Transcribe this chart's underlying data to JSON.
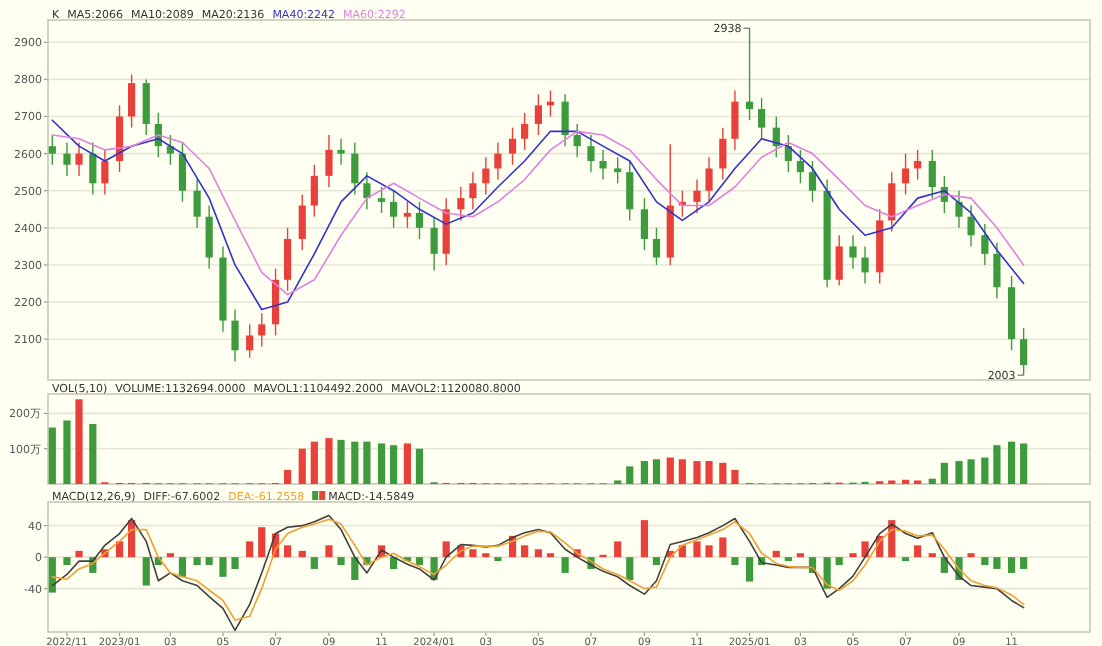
{
  "chart_data": [
    {
      "type": "candlestick",
      "x": [
        "2022-10-15",
        "2022-11-01",
        "2022-11-15",
        "2022-12-01",
        "2022-12-15",
        "2023-01-01",
        "2023-01-15",
        "2023-02-01",
        "2023-02-15",
        "2023-03-01",
        "2023-03-15",
        "2023-04-01",
        "2023-04-15",
        "2023-05-01",
        "2023-05-15",
        "2023-06-01",
        "2023-06-15",
        "2023-07-01",
        "2023-07-15",
        "2023-08-01",
        "2023-08-15",
        "2023-09-01",
        "2023-09-15",
        "2023-10-01",
        "2023-10-15",
        "2023-11-01",
        "2023-11-15",
        "2023-12-01",
        "2023-12-15",
        "2024-01-01",
        "2024-01-15",
        "2024-02-01",
        "2024-02-15",
        "2024-03-01",
        "2024-03-15",
        "2024-04-01",
        "2024-04-15",
        "2024-05-01",
        "2024-05-15",
        "2024-06-01",
        "2024-06-15",
        "2024-07-01",
        "2024-07-15",
        "2024-08-01",
        "2024-08-15",
        "2024-09-01",
        "2024-09-15",
        "2024-10-01",
        "2024-10-15",
        "2024-11-01",
        "2024-11-15",
        "2024-12-01",
        "2024-12-15",
        "2025-01-01",
        "2025-01-15",
        "2025-02-01",
        "2025-02-15",
        "2025-03-01",
        "2025-03-15",
        "2025-04-01",
        "2025-04-15",
        "2025-05-01",
        "2025-05-15",
        "2025-06-01",
        "2025-06-15",
        "2025-07-01",
        "2025-07-15",
        "2025-08-01",
        "2025-08-15",
        "2025-09-01",
        "2025-09-15",
        "2025-10-01",
        "2025-10-15",
        "2025-11-01",
        "2025-11-15"
      ],
      "ohlc": [
        [
          2620,
          2650,
          2570,
          2600
        ],
        [
          2600,
          2630,
          2540,
          2570
        ],
        [
          2570,
          2630,
          2540,
          2600
        ],
        [
          2600,
          2630,
          2490,
          2520
        ],
        [
          2520,
          2610,
          2490,
          2580
        ],
        [
          2580,
          2730,
          2550,
          2700
        ],
        [
          2700,
          2813,
          2670,
          2790
        ],
        [
          2790,
          2800,
          2650,
          2680
        ],
        [
          2680,
          2710,
          2590,
          2620
        ],
        [
          2620,
          2650,
          2570,
          2600
        ],
        [
          2600,
          2630,
          2470,
          2500
        ],
        [
          2500,
          2530,
          2400,
          2430
        ],
        [
          2430,
          2460,
          2290,
          2320
        ],
        [
          2320,
          2350,
          2120,
          2150
        ],
        [
          2150,
          2180,
          2040,
          2070
        ],
        [
          2070,
          2140,
          2050,
          2110
        ],
        [
          2110,
          2170,
          2080,
          2140
        ],
        [
          2140,
          2290,
          2110,
          2260
        ],
        [
          2260,
          2400,
          2230,
          2370
        ],
        [
          2370,
          2490,
          2340,
          2460
        ],
        [
          2460,
          2570,
          2430,
          2540
        ],
        [
          2540,
          2650,
          2510,
          2610
        ],
        [
          2610,
          2640,
          2570,
          2600
        ],
        [
          2600,
          2630,
          2490,
          2520
        ],
        [
          2520,
          2550,
          2450,
          2480
        ],
        [
          2480,
          2510,
          2440,
          2470
        ],
        [
          2470,
          2500,
          2400,
          2430
        ],
        [
          2430,
          2470,
          2400,
          2440
        ],
        [
          2440,
          2470,
          2370,
          2400
        ],
        [
          2400,
          2430,
          2285,
          2330
        ],
        [
          2330,
          2480,
          2300,
          2450
        ],
        [
          2450,
          2510,
          2420,
          2480
        ],
        [
          2480,
          2550,
          2450,
          2520
        ],
        [
          2520,
          2590,
          2490,
          2560
        ],
        [
          2560,
          2630,
          2530,
          2600
        ],
        [
          2600,
          2670,
          2570,
          2640
        ],
        [
          2640,
          2710,
          2610,
          2680
        ],
        [
          2680,
          2760,
          2650,
          2730
        ],
        [
          2730,
          2770,
          2700,
          2740
        ],
        [
          2740,
          2760,
          2620,
          2650
        ],
        [
          2650,
          2680,
          2590,
          2620
        ],
        [
          2620,
          2650,
          2550,
          2580
        ],
        [
          2580,
          2610,
          2530,
          2560
        ],
        [
          2560,
          2590,
          2520,
          2550
        ],
        [
          2550,
          2580,
          2420,
          2450
        ],
        [
          2450,
          2480,
          2340,
          2370
        ],
        [
          2370,
          2400,
          2300,
          2320
        ],
        [
          2320,
          2625,
          2300,
          2460
        ],
        [
          2460,
          2500,
          2430,
          2470
        ],
        [
          2470,
          2530,
          2440,
          2500
        ],
        [
          2500,
          2590,
          2470,
          2560
        ],
        [
          2560,
          2670,
          2530,
          2640
        ],
        [
          2640,
          2770,
          2610,
          2740
        ],
        [
          2740,
          2938,
          2690,
          2720
        ],
        [
          2720,
          2750,
          2640,
          2670
        ],
        [
          2670,
          2700,
          2590,
          2620
        ],
        [
          2620,
          2650,
          2550,
          2580
        ],
        [
          2580,
          2610,
          2520,
          2550
        ],
        [
          2550,
          2580,
          2470,
          2500
        ],
        [
          2500,
          2530,
          2240,
          2260
        ],
        [
          2260,
          2380,
          2245,
          2350
        ],
        [
          2350,
          2380,
          2290,
          2320
        ],
        [
          2320,
          2350,
          2250,
          2280
        ],
        [
          2280,
          2450,
          2250,
          2420
        ],
        [
          2420,
          2550,
          2390,
          2520
        ],
        [
          2520,
          2600,
          2490,
          2560
        ],
        [
          2560,
          2610,
          2530,
          2580
        ],
        [
          2580,
          2610,
          2480,
          2510
        ],
        [
          2510,
          2540,
          2440,
          2470
        ],
        [
          2470,
          2500,
          2400,
          2430
        ],
        [
          2430,
          2460,
          2350,
          2380
        ],
        [
          2380,
          2410,
          2300,
          2330
        ],
        [
          2330,
          2360,
          2210,
          2240
        ],
        [
          2240,
          2270,
          2070,
          2100
        ],
        [
          2100,
          2130,
          2003,
          2030
        ]
      ],
      "colors": [
        "#3d9b3d",
        "#3d9b3d",
        "#e8413c",
        "#3d9b3d",
        "#e8413c",
        "#e8413c",
        "#e8413c",
        "#3d9b3d",
        "#3d9b3d",
        "#3d9b3d",
        "#3d9b3d",
        "#3d9b3d",
        "#3d9b3d",
        "#3d9b3d",
        "#3d9b3d",
        "#e8413c",
        "#e8413c",
        "#e8413c",
        "#e8413c",
        "#e8413c",
        "#e8413c",
        "#e8413c",
        "#3d9b3d",
        "#3d9b3d",
        "#3d9b3d",
        "#3d9b3d",
        "#3d9b3d",
        "#e8413c",
        "#3d9b3d",
        "#3d9b3d",
        "#e8413c",
        "#e8413c",
        "#e8413c",
        "#e8413c",
        "#e8413c",
        "#e8413c",
        "#e8413c",
        "#e8413c",
        "#e8413c",
        "#3d9b3d",
        "#3d9b3d",
        "#3d9b3d",
        "#3d9b3d",
        "#3d9b3d",
        "#3d9b3d",
        "#3d9b3d",
        "#3d9b3d",
        "#e8413c",
        "#e8413c",
        "#e8413c",
        "#e8413c",
        "#e8413c",
        "#e8413c",
        "#3d9b3d",
        "#3d9b3d",
        "#3d9b3d",
        "#3d9b3d",
        "#3d9b3d",
        "#3d9b3d",
        "#3d9b3d",
        "#e8413c",
        "#3d9b3d",
        "#3d9b3d",
        "#e8413c",
        "#e8413c",
        "#e8413c",
        "#e8413c",
        "#3d9b3d",
        "#3d9b3d",
        "#3d9b3d",
        "#3d9b3d",
        "#3d9b3d",
        "#3d9b3d",
        "#3d9b3d",
        "#3d9b3d"
      ],
      "series": [
        {
          "name": "MA40:2242",
          "type": "line",
          "color": "#3333cc",
          "x": [
            "2022-10-15",
            "2022-11-15",
            "2022-12-15",
            "2023-01-15",
            "2023-02-15",
            "2023-03-15",
            "2023-04-15",
            "2023-05-15",
            "2023-06-15",
            "2023-07-15",
            "2023-08-15",
            "2023-09-15",
            "2023-10-15",
            "2023-11-15",
            "2023-12-15",
            "2024-01-15",
            "2024-02-15",
            "2024-03-15",
            "2024-04-15",
            "2024-05-15",
            "2024-06-15",
            "2024-07-15",
            "2024-08-15",
            "2024-09-15",
            "2024-10-15",
            "2024-11-15",
            "2024-12-15",
            "2025-01-15",
            "2025-02-15",
            "2025-03-15",
            "2025-04-15",
            "2025-05-15",
            "2025-06-15",
            "2025-07-15",
            "2025-08-15",
            "2025-09-15",
            "2025-10-15",
            "2025-11-15"
          ],
          "values": [
            2690,
            2620,
            2580,
            2620,
            2640,
            2600,
            2480,
            2300,
            2180,
            2200,
            2330,
            2470,
            2540,
            2500,
            2450,
            2410,
            2440,
            2510,
            2580,
            2660,
            2660,
            2620,
            2580,
            2470,
            2420,
            2470,
            2560,
            2640,
            2620,
            2560,
            2450,
            2380,
            2400,
            2480,
            2500,
            2440,
            2340,
            2250
          ]
        },
        {
          "name": "MA60:2292",
          "type": "line",
          "color": "#e080e0",
          "x": [
            "2022-10-15",
            "2022-11-15",
            "2022-12-15",
            "2023-01-15",
            "2023-02-15",
            "2023-03-15",
            "2023-04-15",
            "2023-05-15",
            "2023-06-15",
            "2023-07-15",
            "2023-08-15",
            "2023-09-15",
            "2023-10-15",
            "2023-11-15",
            "2023-12-15",
            "2024-01-15",
            "2024-02-15",
            "2024-03-15",
            "2024-04-15",
            "2024-05-15",
            "2024-06-15",
            "2024-07-15",
            "2024-08-15",
            "2024-09-15",
            "2024-10-15",
            "2024-11-15",
            "2024-12-15",
            "2025-01-15",
            "2025-02-15",
            "2025-03-15",
            "2025-04-15",
            "2025-05-15",
            "2025-06-15",
            "2025-07-15",
            "2025-08-15",
            "2025-09-15",
            "2025-10-15",
            "2025-11-15"
          ],
          "values": [
            2650,
            2640,
            2610,
            2620,
            2650,
            2630,
            2560,
            2420,
            2280,
            2220,
            2260,
            2380,
            2480,
            2520,
            2480,
            2440,
            2430,
            2470,
            2530,
            2610,
            2660,
            2650,
            2610,
            2530,
            2460,
            2460,
            2510,
            2590,
            2630,
            2600,
            2530,
            2460,
            2430,
            2460,
            2490,
            2480,
            2400,
            2300
          ]
        }
      ],
      "xlim": [
        "2022-10-10",
        "2026-01-31"
      ],
      "ylim": [
        1990,
        2960
      ],
      "yticks": [
        2100,
        2200,
        2300,
        2400,
        2500,
        2600,
        2700,
        2800,
        2900
      ],
      "tick_labels": "y",
      "grid": "y",
      "annotations": [
        "K",
        "MA5:2066",
        "MA10:2089",
        "MA20:2136",
        {
          "text": "2938",
          "x": "2025-01-01",
          "y": 2938
        },
        {
          "text": "2003",
          "x": "2025-11-15",
          "y": 2003
        }
      ]
    },
    {
      "type": "bar",
      "x": [
        "2022-10-15",
        "2022-11-01",
        "2022-11-15",
        "2022-12-01",
        "2022-12-15",
        "2023-01-01",
        "2023-01-15",
        "2023-02-01",
        "2023-02-15",
        "2023-03-01",
        "2023-03-15",
        "2023-04-01",
        "2023-04-15",
        "2023-05-01",
        "2023-05-15",
        "2023-06-01",
        "2023-06-15",
        "2023-07-01",
        "2023-07-15",
        "2023-08-01",
        "2023-08-15",
        "2023-09-01",
        "2023-09-15",
        "2023-10-01",
        "2023-10-15",
        "2023-11-01",
        "2023-11-15",
        "2023-12-01",
        "2023-12-15",
        "2024-01-01",
        "2024-01-15",
        "2024-02-01",
        "2024-02-15",
        "2024-03-01",
        "2024-03-15",
        "2024-04-01",
        "2024-04-15",
        "2024-05-01",
        "2024-05-15",
        "2024-06-01",
        "2024-06-15",
        "2024-07-01",
        "2024-07-15",
        "2024-08-01",
        "2024-08-15",
        "2024-09-01",
        "2024-09-15",
        "2024-10-01",
        "2024-10-15",
        "2024-11-01",
        "2024-11-15",
        "2024-12-01",
        "2024-12-15",
        "2025-01-01",
        "2025-01-15",
        "2025-02-01",
        "2025-02-15",
        "2025-03-01",
        "2025-03-15",
        "2025-04-01",
        "2025-04-15",
        "2025-05-01",
        "2025-05-15",
        "2025-06-01",
        "2025-06-15",
        "2025-07-01",
        "2025-07-15",
        "2025-08-01",
        "2025-08-15",
        "2025-09-01",
        "2025-09-15",
        "2025-10-01",
        "2025-10-15",
        "2025-11-01",
        "2025-11-15"
      ],
      "values": [
        160,
        180,
        240,
        170,
        5,
        3,
        3,
        3,
        2,
        2,
        2,
        2,
        2,
        2,
        2,
        2,
        2,
        3,
        40,
        100,
        120,
        130,
        125,
        120,
        120,
        115,
        110,
        115,
        100,
        5,
        3,
        3,
        3,
        2,
        2,
        2,
        2,
        2,
        2,
        2,
        2,
        2,
        2,
        10,
        50,
        65,
        70,
        75,
        70,
        65,
        65,
        60,
        40,
        3,
        2,
        2,
        2,
        2,
        3,
        4,
        4,
        4,
        6,
        8,
        10,
        12,
        10,
        15,
        60,
        65,
        70,
        75,
        110,
        120,
        115
      ],
      "colors": [
        "#3d9b3d",
        "#3d9b3d",
        "#e8413c",
        "#3d9b3d",
        "#e8413c",
        "#e8413c",
        "#e8413c",
        "#3d9b3d",
        "#3d9b3d",
        "#3d9b3d",
        "#3d9b3d",
        "#3d9b3d",
        "#3d9b3d",
        "#3d9b3d",
        "#3d9b3d",
        "#e8413c",
        "#e8413c",
        "#e8413c",
        "#e8413c",
        "#e8413c",
        "#e8413c",
        "#e8413c",
        "#3d9b3d",
        "#3d9b3d",
        "#3d9b3d",
        "#3d9b3d",
        "#3d9b3d",
        "#e8413c",
        "#3d9b3d",
        "#3d9b3d",
        "#e8413c",
        "#e8413c",
        "#e8413c",
        "#e8413c",
        "#e8413c",
        "#e8413c",
        "#e8413c",
        "#e8413c",
        "#e8413c",
        "#3d9b3d",
        "#3d9b3d",
        "#3d9b3d",
        "#3d9b3d",
        "#3d9b3d",
        "#3d9b3d",
        "#3d9b3d",
        "#3d9b3d",
        "#e8413c",
        "#e8413c",
        "#e8413c",
        "#e8413c",
        "#e8413c",
        "#e8413c",
        "#3d9b3d",
        "#3d9b3d",
        "#3d9b3d",
        "#3d9b3d",
        "#3d9b3d",
        "#3d9b3d",
        "#3d9b3d",
        "#e8413c",
        "#3d9b3d",
        "#3d9b3d",
        "#e8413c",
        "#e8413c",
        "#e8413c",
        "#e8413c",
        "#3d9b3d",
        "#3d9b3d",
        "#3d9b3d",
        "#3d9b3d",
        "#3d9b3d",
        "#3d9b3d",
        "#3d9b3d",
        "#3d9b3d"
      ],
      "xlim": [
        "2022-10-10",
        "2026-01-31"
      ],
      "ylim": [
        0,
        255
      ],
      "yticks": [
        {
          "value": 100,
          "label": "100万"
        },
        {
          "value": 200,
          "label": "200万"
        }
      ],
      "tick_labels": "y",
      "grid": "y",
      "annotations": [
        "VOL(5,10)",
        "VOLUME:1132694.0000",
        "MAVOL1:1104492.2000",
        "MAVOL2:1120080.8000"
      ]
    },
    {
      "type": "bar",
      "x": [
        "2022-10-15",
        "2022-11-01",
        "2022-11-15",
        "2022-12-01",
        "2022-12-15",
        "2023-01-01",
        "2023-01-15",
        "2023-02-01",
        "2023-02-15",
        "2023-03-01",
        "2023-03-15",
        "2023-04-01",
        "2023-04-15",
        "2023-05-01",
        "2023-05-15",
        "2023-06-01",
        "2023-06-15",
        "2023-07-01",
        "2023-07-15",
        "2023-08-01",
        "2023-08-15",
        "2023-09-01",
        "2023-09-15",
        "2023-10-01",
        "2023-10-15",
        "2023-11-01",
        "2023-11-15",
        "2023-12-01",
        "2023-12-15",
        "2024-01-01",
        "2024-01-15",
        "2024-02-01",
        "2024-02-15",
        "2024-03-01",
        "2024-03-15",
        "2024-04-01",
        "2024-04-15",
        "2024-05-01",
        "2024-05-15",
        "2024-06-01",
        "2024-06-15",
        "2024-07-01",
        "2024-07-15",
        "2024-08-01",
        "2024-08-15",
        "2024-09-01",
        "2024-09-15",
        "2024-10-01",
        "2024-10-15",
        "2024-11-01",
        "2024-11-15",
        "2024-12-01",
        "2024-12-15",
        "2025-01-01",
        "2025-01-15",
        "2025-02-01",
        "2025-02-15",
        "2025-03-01",
        "2025-03-15",
        "2025-04-01",
        "2025-04-15",
        "2025-05-01",
        "2025-05-15",
        "2025-06-01",
        "2025-06-15",
        "2025-07-01",
        "2025-07-15",
        "2025-08-01",
        "2025-08-15",
        "2025-09-01",
        "2025-09-15",
        "2025-10-01",
        "2025-10-15",
        "2025-11-01",
        "2025-11-15"
      ],
      "series": [
        {
          "name": "DIFF:-67.6002",
          "type": "line",
          "color": "#404040",
          "values": [
            -36,
            -22,
            -5,
            -5,
            15,
            30,
            49,
            20,
            -30,
            -20,
            -30,
            -36,
            -50,
            -65,
            -93,
            -60,
            -20,
            30,
            38,
            40,
            45,
            53,
            35,
            0,
            -20,
            9,
            0,
            -9,
            -15,
            -29,
            0,
            16,
            15,
            13,
            15,
            25,
            31,
            35,
            31,
            10,
            0,
            -10,
            -18,
            -25,
            -36,
            -47,
            -30,
            16,
            20,
            25,
            31,
            40,
            49,
            20,
            -7,
            -10,
            -13,
            -13,
            -13,
            -51,
            -40,
            -24,
            0,
            30,
            42,
            30,
            24,
            31,
            0,
            -24,
            -36,
            -38,
            -40,
            -55,
            -64
          ]
        },
        {
          "name": "DEA:-61.2558",
          "type": "line",
          "color": "#f0a030",
          "values": [
            -25,
            -28,
            -15,
            -8,
            5,
            20,
            35,
            35,
            0,
            -20,
            -25,
            -30,
            -42,
            -55,
            -80,
            -75,
            -40,
            10,
            30,
            38,
            42,
            48,
            42,
            15,
            -10,
            0,
            5,
            -5,
            -12,
            -22,
            -10,
            8,
            14,
            14,
            14,
            20,
            27,
            33,
            32,
            18,
            5,
            -5,
            -15,
            -22,
            -30,
            -40,
            -38,
            0,
            15,
            22,
            28,
            35,
            45,
            30,
            5,
            -8,
            -12,
            -13,
            -13,
            -35,
            -42,
            -30,
            -10,
            20,
            35,
            33,
            27,
            28,
            10,
            -15,
            -30,
            -36,
            -39,
            -48,
            -60
          ]
        },
        {
          "name": "MACD:-14.5849",
          "type": "bar",
          "values": [
            -45,
            -10,
            8,
            -20,
            10,
            20,
            47,
            -36,
            -10,
            5,
            -25,
            -10,
            -10,
            -25,
            -15,
            20,
            38,
            30,
            15,
            8,
            -15,
            15,
            -10,
            -29,
            -10,
            15,
            -15,
            -5,
            -10,
            -29,
            20,
            15,
            10,
            5,
            -5,
            27,
            15,
            10,
            5,
            -20,
            10,
            -15,
            3,
            20,
            -29,
            47,
            -10,
            8,
            15,
            20,
            15,
            25,
            -10,
            -31,
            -10,
            8,
            -5,
            5,
            -20,
            -40,
            -10,
            5,
            20,
            27,
            47,
            -5,
            15,
            5,
            -20,
            -29,
            5,
            -10,
            -15,
            -20,
            -15
          ],
          "colors": [
            "#3d9b3d",
            "#3d9b3d",
            "#e8413c",
            "#3d9b3d",
            "#e8413c",
            "#e8413c",
            "#e8413c",
            "#3d9b3d",
            "#3d9b3d",
            "#e8413c",
            "#3d9b3d",
            "#3d9b3d",
            "#3d9b3d",
            "#3d9b3d",
            "#3d9b3d",
            "#e8413c",
            "#e8413c",
            "#e8413c",
            "#e8413c",
            "#e8413c",
            "#3d9b3d",
            "#e8413c",
            "#3d9b3d",
            "#3d9b3d",
            "#3d9b3d",
            "#e8413c",
            "#3d9b3d",
            "#3d9b3d",
            "#3d9b3d",
            "#3d9b3d",
            "#e8413c",
            "#e8413c",
            "#e8413c",
            "#e8413c",
            "#3d9b3d",
            "#e8413c",
            "#e8413c",
            "#e8413c",
            "#e8413c",
            "#3d9b3d",
            "#e8413c",
            "#3d9b3d",
            "#e8413c",
            "#e8413c",
            "#3d9b3d",
            "#e8413c",
            "#3d9b3d",
            "#e8413c",
            "#e8413c",
            "#e8413c",
            "#e8413c",
            "#e8413c",
            "#3d9b3d",
            "#3d9b3d",
            "#3d9b3d",
            "#e8413c",
            "#3d9b3d",
            "#e8413c",
            "#3d9b3d",
            "#3d9b3d",
            "#3d9b3d",
            "#e8413c",
            "#e8413c",
            "#e8413c",
            "#e8413c",
            "#3d9b3d",
            "#e8413c",
            "#e8413c",
            "#3d9b3d",
            "#3d9b3d",
            "#e8413c",
            "#3d9b3d",
            "#3d9b3d",
            "#3d9b3d",
            "#3d9b3d"
          ]
        }
      ],
      "xlim": [
        "2022-10-10",
        "2026-01-31"
      ],
      "ylim": [
        -95,
        70
      ],
      "yticks": [
        -40,
        0,
        40
      ],
      "xticks": [
        {
          "value": "2022-11-01",
          "label": "2022/11"
        },
        {
          "value": "2023-01-01",
          "label": "2023/01"
        },
        {
          "value": "2023-03-01",
          "label": "03"
        },
        {
          "value": "2023-05-01",
          "label": "05"
        },
        {
          "value": "2023-07-01",
          "label": "07"
        },
        {
          "value": "2023-09-01",
          "label": "09"
        },
        {
          "value": "2023-11-01",
          "label": "11"
        },
        {
          "value": "2024-01-01",
          "label": "2024/01"
        },
        {
          "value": "2024-03-01",
          "label": "03"
        },
        {
          "value": "2024-05-01",
          "label": "05"
        },
        {
          "value": "2024-07-01",
          "label": "07"
        },
        {
          "value": "2024-09-01",
          "label": "09"
        },
        {
          "value": "2024-11-01",
          "label": "11"
        },
        {
          "value": "2025-01-01",
          "label": "2025/01"
        },
        {
          "value": "2025-03-01",
          "label": "03"
        },
        {
          "value": "2025-05-01",
          "label": "05"
        },
        {
          "value": "2025-07-01",
          "label": "07"
        },
        {
          "value": "2025-09-01",
          "label": "09"
        },
        {
          "value": "2025-11-01",
          "label": "11"
        }
      ],
      "grid": "y",
      "annotations": [
        "MACD(12,26,9)"
      ]
    }
  ]
}
